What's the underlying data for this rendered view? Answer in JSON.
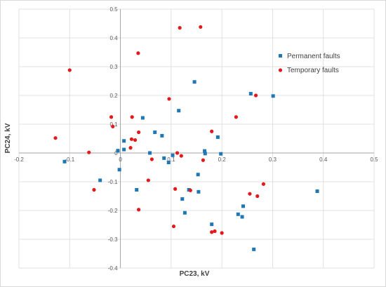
{
  "chart_data": {
    "type": "scatter",
    "xlabel": "PC23, kV",
    "ylabel": "PC24, kV",
    "xlim": [
      -0.2,
      0.5
    ],
    "ylim": [
      -0.4,
      0.5
    ],
    "x_ticks": [
      "-0.2",
      "-0.1",
      "0",
      "0.1",
      "0.2",
      "0.3",
      "0.4",
      "0.5"
    ],
    "y_ticks": [
      "-0.4",
      "-0.3",
      "-0.2",
      "-0.1",
      "0",
      "0.1",
      "0.2",
      "0.3",
      "0.4",
      "0.5"
    ],
    "grid": true,
    "legend_position": "right",
    "series": [
      {
        "name": "Permanent faults",
        "color": "#1f77b4",
        "marker": "square",
        "points": [
          [
            -0.11,
            -0.03
          ],
          [
            -0.04,
            -0.095
          ],
          [
            -0.005,
            0.008
          ],
          [
            -0.002,
            -0.058
          ],
          [
            0.007,
            0.042
          ],
          [
            0.007,
            0.012
          ],
          [
            0.032,
            -0.128
          ],
          [
            0.044,
            0.122
          ],
          [
            0.058,
            0.0
          ],
          [
            0.068,
            0.072
          ],
          [
            0.082,
            0.06
          ],
          [
            0.086,
            -0.018
          ],
          [
            0.095,
            -0.033
          ],
          [
            0.103,
            -0.008
          ],
          [
            0.115,
            0.147
          ],
          [
            0.122,
            -0.16
          ],
          [
            0.127,
            -0.208
          ],
          [
            0.135,
            -0.128
          ],
          [
            0.146,
            0.247
          ],
          [
            0.153,
            -0.075
          ],
          [
            0.154,
            -0.135
          ],
          [
            0.166,
            0.007
          ],
          [
            0.167,
            -0.002
          ],
          [
            0.18,
            -0.248
          ],
          [
            0.192,
            0.055
          ],
          [
            0.198,
            -0.003
          ],
          [
            0.232,
            -0.213
          ],
          [
            0.24,
            -0.222
          ],
          [
            0.242,
            -0.185
          ],
          [
            0.257,
            0.206
          ],
          [
            0.263,
            -0.335
          ],
          [
            0.301,
            0.198
          ],
          [
            0.388,
            -0.133
          ]
        ]
      },
      {
        "name": "Temporary faults",
        "color": "#e31a1c",
        "marker": "circle",
        "points": [
          [
            -0.128,
            0.052
          ],
          [
            -0.1,
            0.288
          ],
          [
            -0.062,
            0.002
          ],
          [
            -0.052,
            -0.128
          ],
          [
            -0.018,
            0.125
          ],
          [
            -0.015,
            0.092
          ],
          [
            0.02,
            0.018
          ],
          [
            0.022,
            0.048
          ],
          [
            0.023,
            0.125
          ],
          [
            0.029,
            0.045
          ],
          [
            0.035,
            0.347
          ],
          [
            0.036,
            0.072
          ],
          [
            0.036,
            -0.197
          ],
          [
            0.055,
            -0.095
          ],
          [
            0.062,
            -0.022
          ],
          [
            0.096,
            0.188
          ],
          [
            0.105,
            -0.255
          ],
          [
            0.108,
            -0.125
          ],
          [
            0.112,
            0.0
          ],
          [
            0.117,
            0.435
          ],
          [
            0.12,
            -0.01
          ],
          [
            0.138,
            -0.13
          ],
          [
            0.158,
            0.438
          ],
          [
            0.163,
            -0.025
          ],
          [
            0.18,
            0.075
          ],
          [
            0.18,
            -0.275
          ],
          [
            0.186,
            -0.272
          ],
          [
            0.2,
            -0.278
          ],
          [
            0.228,
            0.125
          ],
          [
            0.255,
            -0.142
          ],
          [
            0.267,
            0.2
          ],
          [
            0.27,
            -0.15
          ],
          [
            0.282,
            -0.108
          ]
        ]
      }
    ]
  }
}
